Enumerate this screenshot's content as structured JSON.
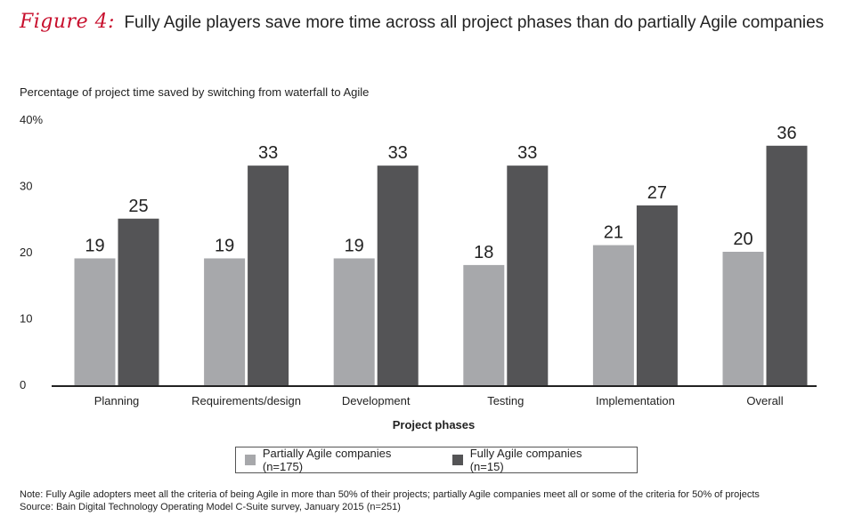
{
  "figure": {
    "label": "Figure 4:",
    "title": "Fully Agile players save more time across all project phases than do partially Agile companies"
  },
  "notes": {
    "note": "Note: Fully Agile adopters meet all the criteria of being Agile in more than 50% of their projects; partially Agile companies meet all or some of the criteria for 50% of projects",
    "source": "Source: Bain Digital Technology Operating Model C-Suite survey, January 2015 (n=251)"
  },
  "colors": {
    "partial": "#a7a8ab",
    "full": "#545456",
    "axis": "#222222",
    "accent": "#c8102e"
  },
  "chart_data": {
    "type": "bar",
    "title": "Fully Agile players save more time across all project phases than do partially Agile companies",
    "ylabel": "Percentage of project time saved by switching from waterfall to Agile",
    "xlabel": "Project phases",
    "categories": [
      "Planning",
      "Requirements/design",
      "Development",
      "Testing",
      "Implementation",
      "Overall"
    ],
    "series": [
      {
        "name": "Partially Agile companies (n=175)",
        "values": [
          19,
          19,
          19,
          18,
          21,
          20
        ],
        "labels": [
          "19",
          "19",
          "19",
          "18",
          "21",
          "20"
        ]
      },
      {
        "name": "Fully Agile companies (n=15)",
        "values": [
          25,
          33,
          33,
          33,
          27,
          36
        ],
        "labels": [
          "25",
          "33",
          "33",
          "33",
          "27",
          "36"
        ]
      }
    ],
    "ylim": [
      0,
      40
    ],
    "yticks": [
      0,
      10,
      20,
      30,
      40
    ],
    "ytick_labels": [
      "0",
      "10",
      "20",
      "30",
      "40%"
    ],
    "grid": false,
    "legend_position": "bottom"
  }
}
